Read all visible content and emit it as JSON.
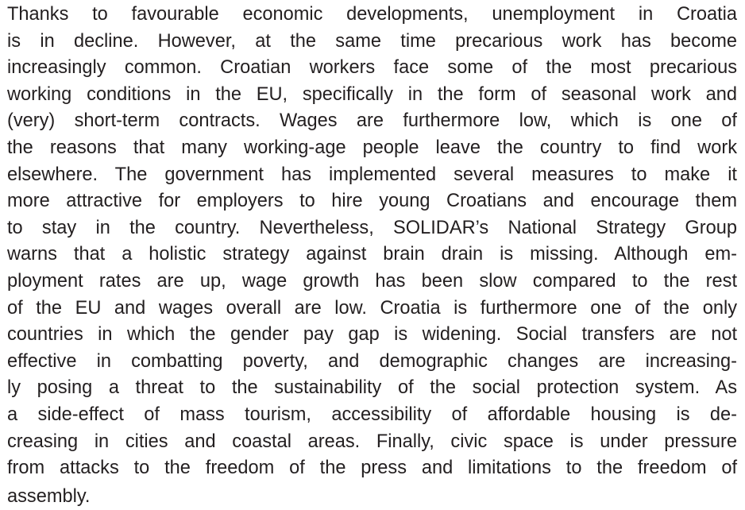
{
  "paragraph": {
    "lines": [
      "Thanks to favourable economic developments, unemployment in Croatia",
      "is in decline. However, at the same time precarious work has become",
      "increasingly common. Croatian workers face some of the most precarious",
      "working conditions in the EU, specifically in the form of seasonal work and",
      "(very) short-term contracts. Wages are furthermore low, which is one of",
      "the reasons that many working-age people leave the country to find work",
      "elsewhere. The government has implemented several measures to make it",
      "more attractive for employers to hire young Croatians and encourage them",
      "to stay in the country. Nevertheless, SOLIDAR’s National Strategy Group",
      "warns that a holistic strategy against brain drain is missing. Although em-",
      "ployment rates are up, wage growth has been slow compared to the rest",
      "of the EU and wages overall are low. Croatia is furthermore one of the only",
      "countries in which the gender pay gap is widening. Social transfers are not",
      "effective in combatting poverty, and demographic changes are increasing-",
      "ly posing a threat to the sustainability of the social protection system. As",
      "a side-effect of mass tourism, accessibility of affordable housing is de-",
      "creasing in cities and coastal areas. Finally, civic space is under pressure",
      "from attacks to the freedom of the press and limitations to the freedom of",
      "assembly."
    ]
  }
}
